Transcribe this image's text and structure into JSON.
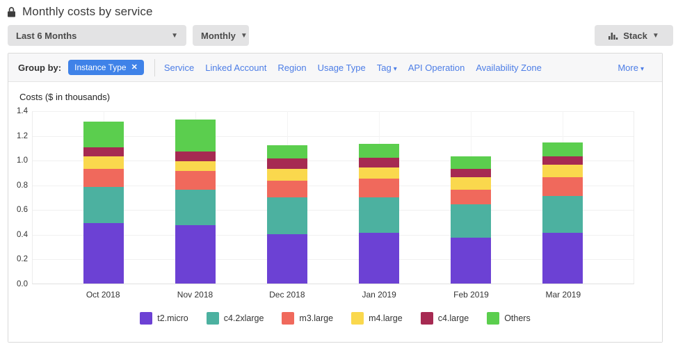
{
  "header": {
    "title": "Monthly costs by service"
  },
  "toolbar": {
    "date_range": "Last 6 Months",
    "granularity": "Monthly",
    "chart_style": "Stack"
  },
  "group_by": {
    "label": "Group by:",
    "active_filter": "Instance Type",
    "remove_filter_glyph": "✕",
    "links": [
      {
        "label": "Service",
        "caret": false
      },
      {
        "label": "Linked Account",
        "caret": false
      },
      {
        "label": "Region",
        "caret": false
      },
      {
        "label": "Usage Type",
        "caret": false
      },
      {
        "label": "Tag",
        "caret": true
      },
      {
        "label": "API Operation",
        "caret": false
      },
      {
        "label": "Availability Zone",
        "caret": false
      }
    ],
    "more": {
      "label": "More",
      "caret": true
    }
  },
  "chart_data": {
    "type": "bar",
    "stacked": true,
    "title": "Costs ($ in thousands)",
    "categories": [
      "Oct 2018",
      "Nov 2018",
      "Dec 2018",
      "Jan 2019",
      "Feb 2019",
      "Mar 2019"
    ],
    "series": [
      {
        "name": "t2.micro",
        "color": "#6c41d4",
        "values": [
          0.49,
          0.47,
          0.4,
          0.41,
          0.37,
          0.41
        ]
      },
      {
        "name": "c4.2xlarge",
        "color": "#4cb1a0",
        "values": [
          0.29,
          0.29,
          0.3,
          0.29,
          0.27,
          0.3
        ]
      },
      {
        "name": "m3.large",
        "color": "#f0695c",
        "values": [
          0.15,
          0.15,
          0.13,
          0.15,
          0.12,
          0.15
        ]
      },
      {
        "name": "m4.large",
        "color": "#fad84d",
        "values": [
          0.1,
          0.08,
          0.1,
          0.09,
          0.1,
          0.1
        ]
      },
      {
        "name": "c4.large",
        "color": "#a62a52",
        "values": [
          0.07,
          0.08,
          0.08,
          0.08,
          0.07,
          0.07
        ]
      },
      {
        "name": "Others",
        "color": "#5bce4e",
        "values": [
          0.21,
          0.26,
          0.11,
          0.11,
          0.1,
          0.11
        ]
      }
    ],
    "totals": [
      1.31,
      1.33,
      1.12,
      1.13,
      1.03,
      1.14
    ],
    "ylim": [
      0.0,
      1.4
    ],
    "ytick_step": 0.2,
    "grid": true,
    "legend_position": "bottom"
  }
}
